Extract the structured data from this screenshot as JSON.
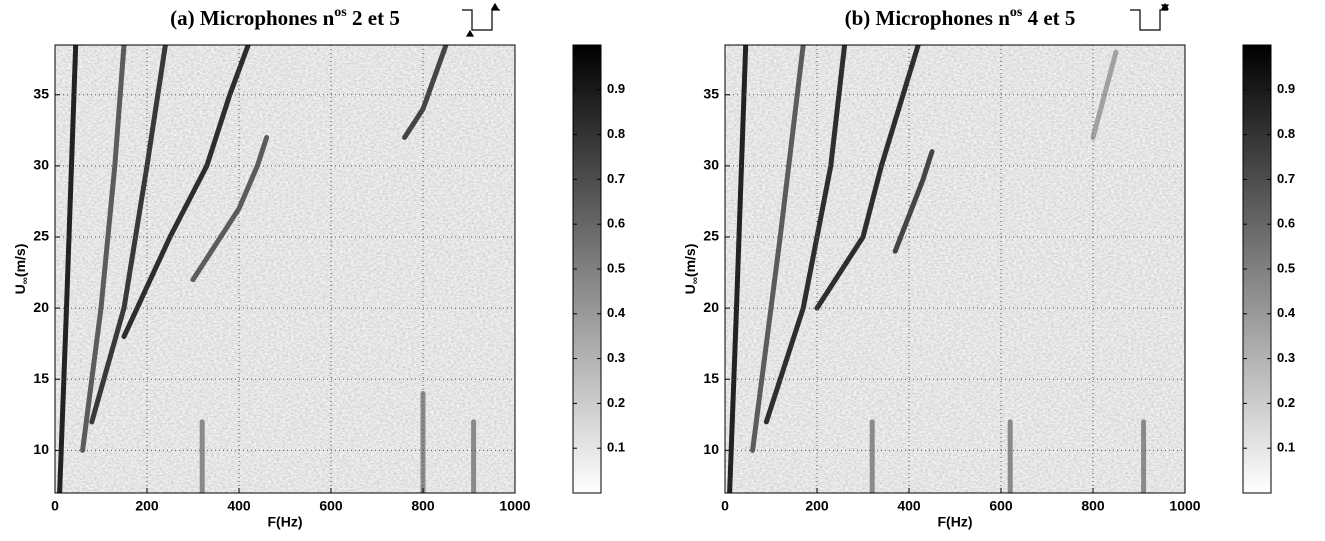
{
  "chart_data": [
    {
      "type": "heatmap",
      "title": {
        "prefix": "(a) Microphones n",
        "sup": "os",
        "suffix": " 2 et 5"
      },
      "xlabel": "F(Hz)",
      "ylabel": {
        "main": "U",
        "sub": "∞",
        "unit": "(m/s)"
      },
      "xlim": [
        0,
        1000
      ],
      "xticks": [
        0,
        200,
        400,
        600,
        800,
        1000
      ],
      "ylim": [
        7,
        38.5
      ],
      "yticks": [
        10,
        15,
        20,
        25,
        30,
        35
      ],
      "grid": true,
      "colormap": "gray",
      "clim": [
        0,
        1
      ],
      "cticks": [
        0.1,
        0.2,
        0.3,
        0.4,
        0.5,
        0.6,
        0.7,
        0.8,
        0.9
      ],
      "ridges": [
        {
          "x": [
            10,
            25,
            45
          ],
          "y": [
            7,
            20,
            38.5
          ],
          "value": 0.95
        },
        {
          "x": [
            60,
            100,
            130,
            150
          ],
          "y": [
            10,
            20,
            30,
            38.5
          ],
          "value": 0.7
        },
        {
          "x": [
            80,
            150,
            200,
            240
          ],
          "y": [
            12,
            20,
            30,
            38.5
          ],
          "value": 0.85
        },
        {
          "x": [
            150,
            250,
            330,
            380,
            420
          ],
          "y": [
            18,
            25,
            30,
            35,
            38.5
          ],
          "value": 0.9
        },
        {
          "x": [
            300,
            400,
            440,
            460
          ],
          "y": [
            22,
            27,
            30,
            32
          ],
          "value": 0.7
        },
        {
          "x": [
            760,
            800,
            850
          ],
          "y": [
            32,
            34,
            38.5
          ],
          "value": 0.8
        },
        {
          "x": [
            320,
            320
          ],
          "y": [
            7,
            12
          ],
          "value": 0.5
        },
        {
          "x": [
            800,
            800
          ],
          "y": [
            7,
            14
          ],
          "value": 0.5
        },
        {
          "x": [
            910,
            910
          ],
          "y": [
            7,
            12
          ],
          "value": 0.5
        }
      ]
    },
    {
      "type": "heatmap",
      "title": {
        "prefix": "(b) Microphones n",
        "sup": "os",
        "suffix": " 4 et 5"
      },
      "xlabel": "F(Hz)",
      "ylabel": {
        "main": "U",
        "sub": "∞",
        "unit": "(m/s)"
      },
      "xlim": [
        0,
        1000
      ],
      "xticks": [
        0,
        200,
        400,
        600,
        800,
        1000
      ],
      "ylim": [
        7,
        38.5
      ],
      "yticks": [
        10,
        15,
        20,
        25,
        30,
        35
      ],
      "grid": true,
      "colormap": "gray",
      "clim": [
        0,
        1
      ],
      "cticks": [
        0.1,
        0.2,
        0.3,
        0.4,
        0.5,
        0.6,
        0.7,
        0.8,
        0.9
      ],
      "ridges": [
        {
          "x": [
            10,
            25,
            45
          ],
          "y": [
            7,
            20,
            38.5
          ],
          "value": 0.95
        },
        {
          "x": [
            60,
            120,
            170
          ],
          "y": [
            10,
            25,
            38.5
          ],
          "value": 0.7
        },
        {
          "x": [
            90,
            170,
            230,
            260
          ],
          "y": [
            12,
            20,
            30,
            38.5
          ],
          "value": 0.9
        },
        {
          "x": [
            200,
            300,
            340,
            420
          ],
          "y": [
            20,
            25,
            30,
            38.5
          ],
          "value": 0.9
        },
        {
          "x": [
            370,
            430,
            450
          ],
          "y": [
            24,
            29,
            31
          ],
          "value": 0.8
        },
        {
          "x": [
            800,
            850
          ],
          "y": [
            32,
            38
          ],
          "value": 0.4
        },
        {
          "x": [
            320,
            320
          ],
          "y": [
            7,
            12
          ],
          "value": 0.5
        },
        {
          "x": [
            620,
            620
          ],
          "y": [
            7,
            12
          ],
          "value": 0.5
        },
        {
          "x": [
            910,
            910
          ],
          "y": [
            7,
            12
          ],
          "value": 0.5
        }
      ]
    }
  ]
}
